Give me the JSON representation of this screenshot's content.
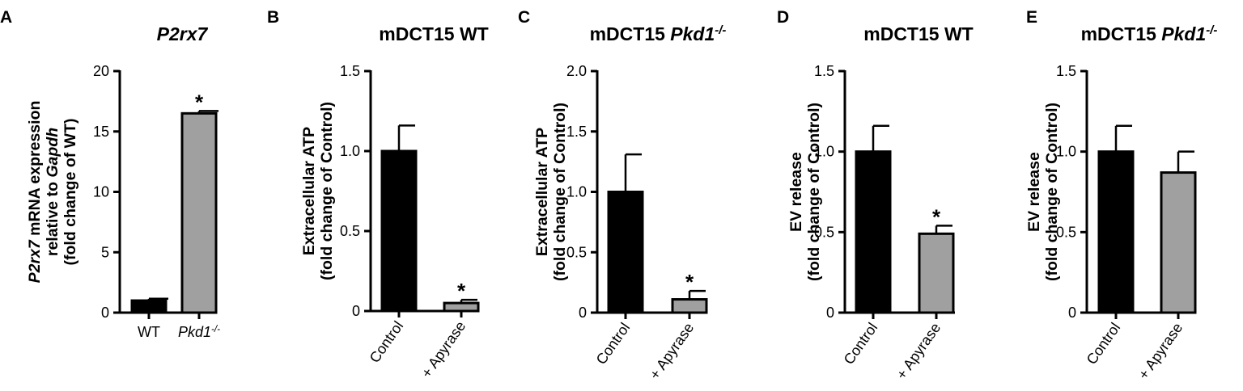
{
  "chart_data": [
    {
      "panel": "A",
      "type": "bar",
      "title": "P2rx7",
      "title_parts": [
        {
          "t": "P2rx7",
          "i": true
        }
      ],
      "ylabel_lines": [
        [
          {
            "t": "P2rx7",
            "i": true
          },
          {
            "t": " mRNA expression"
          }
        ],
        [
          {
            "t": "relative to "
          },
          {
            "t": "Gapdh",
            "i": true
          }
        ],
        [
          {
            "t": "(fold change of WT)"
          }
        ]
      ],
      "ylim": [
        0,
        20
      ],
      "yticks": [
        "0",
        "5",
        "10",
        "15",
        "20"
      ],
      "categories": [
        "WT",
        "Pkd1-/-"
      ],
      "category_parts": [
        [
          {
            "t": "WT"
          }
        ],
        [
          {
            "t": "Pkd1",
            "i": true
          },
          {
            "t": "-/-",
            "sup": true,
            "i": true
          }
        ]
      ],
      "values": [
        1.0,
        16.5
      ],
      "errors": [
        0.15,
        0.2
      ],
      "colors": [
        "#000000",
        "#a0a0a0"
      ],
      "significance": [
        "",
        "*"
      ],
      "rotate_labels": false
    },
    {
      "panel": "B",
      "type": "bar",
      "title": "mDCT15 WT",
      "title_parts": [
        {
          "t": "mDCT15 WT"
        }
      ],
      "ylabel_lines": [
        [
          {
            "t": "Extracellular ATP"
          }
        ],
        [
          {
            "t": "(fold change of Control)"
          }
        ]
      ],
      "ylim": [
        0,
        1.5
      ],
      "yticks": [
        "0",
        "0.5",
        "1.0",
        "1.5"
      ],
      "categories": [
        "Control",
        "+ Apyrase"
      ],
      "category_parts": [
        [
          {
            "t": "Control"
          }
        ],
        [
          {
            "t": "+ Apyrase"
          }
        ]
      ],
      "values": [
        1.0,
        0.05
      ],
      "errors": [
        0.16,
        0.02
      ],
      "colors": [
        "#000000",
        "#a0a0a0"
      ],
      "significance": [
        "",
        "*"
      ],
      "rotate_labels": true
    },
    {
      "panel": "C",
      "type": "bar",
      "title": "mDCT15 Pkd1-/-",
      "title_parts": [
        {
          "t": "mDCT15 "
        },
        {
          "t": "Pkd1",
          "i": true
        },
        {
          "t": "-/-",
          "sup": true,
          "i": true
        }
      ],
      "ylabel_lines": [
        [
          {
            "t": "Extracellular ATP"
          }
        ],
        [
          {
            "t": "(fold change of Control)"
          }
        ]
      ],
      "ylim": [
        0,
        2.0
      ],
      "yticks": [
        "0",
        "0.5",
        "1.0",
        "1.5",
        "2.0"
      ],
      "categories": [
        "Control",
        "+ Apyrase"
      ],
      "category_parts": [
        [
          {
            "t": "Control"
          }
        ],
        [
          {
            "t": "+ Apyrase"
          }
        ]
      ],
      "values": [
        1.0,
        0.11
      ],
      "errors": [
        0.31,
        0.07
      ],
      "colors": [
        "#000000",
        "#a0a0a0"
      ],
      "significance": [
        "",
        "*"
      ],
      "rotate_labels": true
    },
    {
      "panel": "D",
      "type": "bar",
      "title": "mDCT15 WT",
      "title_parts": [
        {
          "t": "mDCT15 WT"
        }
      ],
      "ylabel_lines": [
        [
          {
            "t": "EV release"
          }
        ],
        [
          {
            "t": "(fold change of Control)"
          }
        ]
      ],
      "ylim": [
        0,
        1.5
      ],
      "yticks": [
        "0",
        "0.5",
        "1.0",
        "1.5"
      ],
      "categories": [
        "Control",
        "+ Apyrase"
      ],
      "category_parts": [
        [
          {
            "t": "Control"
          }
        ],
        [
          {
            "t": "+ Apyrase"
          }
        ]
      ],
      "values": [
        1.0,
        0.49
      ],
      "errors": [
        0.16,
        0.05
      ],
      "colors": [
        "#000000",
        "#a0a0a0"
      ],
      "significance": [
        "",
        "*"
      ],
      "rotate_labels": true
    },
    {
      "panel": "E",
      "type": "bar",
      "title": "mDCT15 Pkd1-/-",
      "title_parts": [
        {
          "t": "mDCT15 "
        },
        {
          "t": "Pkd1",
          "i": true
        },
        {
          "t": "-/-",
          "sup": true,
          "i": true
        }
      ],
      "ylabel_lines": [
        [
          {
            "t": "EV release"
          }
        ],
        [
          {
            "t": "(fold change of Control)"
          }
        ]
      ],
      "ylim": [
        0,
        1.5
      ],
      "yticks": [
        "0",
        "0.5",
        "1.0",
        "1.5"
      ],
      "categories": [
        "Control",
        "+ Apyrase"
      ],
      "category_parts": [
        [
          {
            "t": "Control"
          }
        ],
        [
          {
            "t": "+ Apyrase"
          }
        ]
      ],
      "values": [
        1.0,
        0.87
      ],
      "errors": [
        0.16,
        0.13
      ],
      "colors": [
        "#000000",
        "#a0a0a0"
      ],
      "significance": [
        "",
        ""
      ],
      "rotate_labels": true
    }
  ]
}
